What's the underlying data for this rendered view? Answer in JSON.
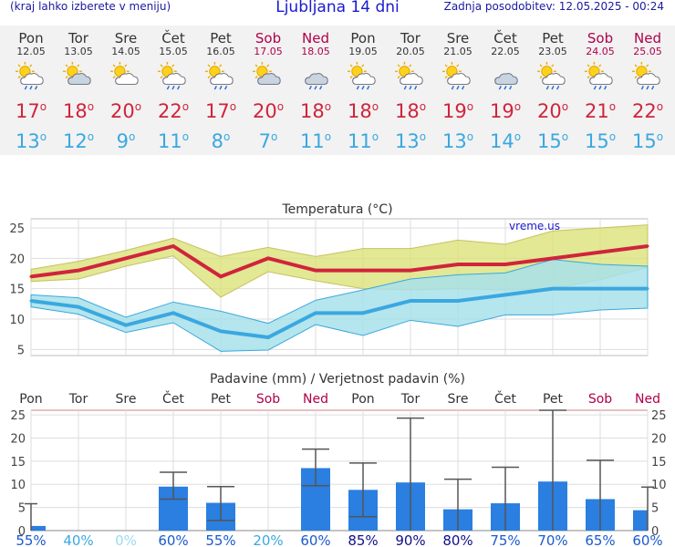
{
  "header": {
    "left_note": "(kraj lahko izberete v meniju)",
    "title": "Ljubljana 14 dni",
    "updated": "Zadnja posodobitev: 12.05.2025 - 00:24"
  },
  "days": [
    {
      "name": "Pon",
      "date": "12.05",
      "weekend": false,
      "icon": "sun-cloud-rain-icon",
      "tmax": "17",
      "tmin": "13"
    },
    {
      "name": "Tor",
      "date": "13.05",
      "weekend": false,
      "icon": "partly-cloudy-icon",
      "tmax": "18",
      "tmin": "12"
    },
    {
      "name": "Sre",
      "date": "14.05",
      "weekend": false,
      "icon": "sun-cloud-icon",
      "tmax": "20",
      "tmin": "9"
    },
    {
      "name": "Čet",
      "date": "15.05",
      "weekend": false,
      "icon": "sun-cloud-rain-icon",
      "tmax": "22",
      "tmin": "11"
    },
    {
      "name": "Pet",
      "date": "16.05",
      "weekend": false,
      "icon": "sun-cloud-rain-icon",
      "tmax": "17",
      "tmin": "8"
    },
    {
      "name": "Sob",
      "date": "17.05",
      "weekend": true,
      "icon": "partly-cloudy-icon",
      "tmax": "20",
      "tmin": "7"
    },
    {
      "name": "Ned",
      "date": "18.05",
      "weekend": true,
      "icon": "cloud-rain-icon",
      "tmax": "18",
      "tmin": "11"
    },
    {
      "name": "Pon",
      "date": "19.05",
      "weekend": false,
      "icon": "sun-cloud-rain-icon",
      "tmax": "18",
      "tmin": "11"
    },
    {
      "name": "Tor",
      "date": "20.05",
      "weekend": false,
      "icon": "sun-cloud-rain-icon",
      "tmax": "18",
      "tmin": "13"
    },
    {
      "name": "Sre",
      "date": "21.05",
      "weekend": false,
      "icon": "sun-cloud-rain-icon",
      "tmax": "19",
      "tmin": "13"
    },
    {
      "name": "Čet",
      "date": "22.05",
      "weekend": false,
      "icon": "cloud-rain-icon",
      "tmax": "19",
      "tmin": "14"
    },
    {
      "name": "Pet",
      "date": "23.05",
      "weekend": false,
      "icon": "sun-cloud-rain-icon",
      "tmax": "20",
      "tmin": "15"
    },
    {
      "name": "Sob",
      "date": "24.05",
      "weekend": true,
      "icon": "sun-cloud-rain-icon",
      "tmax": "21",
      "tmin": "15"
    },
    {
      "name": "Ned",
      "date": "25.05",
      "weekend": true,
      "icon": "sun-cloud-rain-icon",
      "tmax": "22",
      "tmin": "15"
    }
  ],
  "colors": {
    "max_line": "#d0243c",
    "min_line": "#3aa8e0",
    "max_band": "#d8e070",
    "min_band": "#a8e0ea",
    "bar": "#2a7fe0",
    "weekend": "#b0004a"
  },
  "chart_data": [
    {
      "type": "line",
      "title": "Temperatura (°C)",
      "watermark": "vreme.us",
      "x": [
        "Pon 12.05",
        "Tor 13.05",
        "Sre 14.05",
        "Čet 15.05",
        "Pet 16.05",
        "Sob 17.05",
        "Ned 18.05",
        "Pon 19.05",
        "Tor 20.05",
        "Sre 21.05",
        "Čet 22.05",
        "Pet 23.05",
        "Sob 24.05",
        "Ned 25.05"
      ],
      "ylim": [
        4,
        26.5
      ],
      "yticks": [
        "5",
        "10",
        "15",
        "20",
        "25"
      ],
      "grid": true,
      "series": [
        {
          "name": "",
          "values": [
            17,
            18,
            20,
            22,
            17,
            20,
            18,
            18,
            18,
            19,
            19,
            20,
            21,
            22
          ]
        },
        {
          "name": "",
          "values": [
            13,
            12,
            9,
            11,
            8,
            7,
            11,
            11,
            13,
            13,
            14,
            15,
            15,
            15
          ]
        }
      ],
      "bands": [
        {
          "upper": [
            18.2,
            19.5,
            21.3,
            23.3,
            20.3,
            21.8,
            20.3,
            21.6,
            21.6,
            23.0,
            22.3,
            24.5,
            25.0,
            25.5
          ],
          "lower": [
            16.2,
            16.6,
            18.7,
            20.4,
            13.6,
            17.8,
            16.3,
            15.0,
            14.8,
            15.0,
            14.8,
            15.0,
            16.5,
            18.5
          ]
        },
        {
          "upper": [
            14.0,
            13.5,
            10.3,
            12.8,
            11.3,
            9.3,
            13.1,
            14.8,
            16.6,
            17.3,
            17.6,
            19.8,
            19.0,
            18.7
          ],
          "lower": [
            12.0,
            10.8,
            7.8,
            9.4,
            4.7,
            4.9,
            9.1,
            7.3,
            9.8,
            8.8,
            10.7,
            10.7,
            11.5,
            11.8
          ]
        }
      ]
    },
    {
      "type": "bar",
      "title": "Padavine (mm) / Verjetnost padavin (%)",
      "categories": [
        "Pon",
        "Tor",
        "Sre",
        "Čet",
        "Pet",
        "Sob",
        "Ned",
        "Pon",
        "Tor",
        "Sre",
        "Čet",
        "Pet",
        "Sob",
        "Ned"
      ],
      "ylim": [
        0,
        26
      ],
      "yticks": [
        "0",
        "5",
        "10",
        "15",
        "20",
        "25"
      ],
      "values": [
        1,
        0,
        0,
        9.5,
        6,
        0,
        13.5,
        8.8,
        10.4,
        4.6,
        5.9,
        10.6,
        6.8,
        4.4
      ],
      "ranges": [
        [
          0,
          5.8
        ],
        null,
        null,
        [
          6.8,
          12.6
        ],
        [
          2.2,
          9.5
        ],
        null,
        [
          9.7,
          17.6
        ],
        [
          3.0,
          14.6
        ],
        [
          0,
          24.3
        ],
        [
          0,
          11.1
        ],
        [
          0,
          13.7
        ],
        [
          0,
          26
        ],
        [
          0,
          15.2
        ],
        [
          0,
          9.4
        ]
      ],
      "probability": [
        "55%",
        "40%",
        "0%",
        "60%",
        "55%",
        "20%",
        "60%",
        "85%",
        "90%",
        "80%",
        "75%",
        "70%",
        "65%",
        "60%"
      ]
    }
  ]
}
